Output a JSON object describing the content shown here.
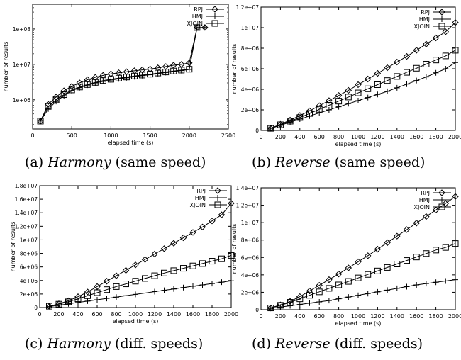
{
  "captions": [
    {
      "tag": "(a)",
      "name": "Harmony",
      "detail": "(same speed)"
    },
    {
      "tag": "(b)",
      "name": "Reverse",
      "detail": "(same speed)"
    },
    {
      "tag": "(c)",
      "name": "Harmony",
      "detail": "(diff. speeds)"
    },
    {
      "tag": "(d)",
      "name": "Reverse",
      "detail": "(diff. speeds)"
    }
  ],
  "chart_data": [
    {
      "type": "line",
      "xlabel": "elapsed time (s)",
      "ylabel": "number of results",
      "xlim": [
        0,
        2500
      ],
      "ylim": [
        150000,
        500000000
      ],
      "yscale": "log",
      "xticks": [
        0,
        500,
        1000,
        1500,
        2000,
        2500
      ],
      "xtick_labels": [
        "0",
        "500",
        "1000",
        "1500",
        "2000",
        "2500"
      ],
      "yticks": [
        1000000,
        10000000,
        100000000
      ],
      "ytick_labels": [
        "1e+06",
        "1e+07",
        "1e+08"
      ],
      "legend": "top-right",
      "grid": false,
      "series": [
        {
          "name": "RPJ",
          "marker": "diamond",
          "x": [
            100,
            200,
            300,
            400,
            500,
            600,
            700,
            800,
            900,
            1000,
            1100,
            1200,
            1300,
            1400,
            1500,
            1600,
            1700,
            1800,
            1900,
            2000,
            2100,
            2200
          ],
          "y": [
            250000,
            750000,
            1200000,
            1800000,
            2400000,
            3000000,
            3700000,
            4300000,
            4900000,
            5400000,
            5800000,
            6200000,
            6600000,
            7000000,
            7400000,
            8000000,
            8700000,
            9500000,
            10000000,
            11000000,
            110000000,
            110000000
          ]
        },
        {
          "name": "HMJ",
          "marker": "plus",
          "x": [
            100,
            200,
            300,
            400,
            500,
            600,
            700,
            800,
            900,
            1000,
            1100,
            1200,
            1300,
            1400,
            1500,
            1600,
            1700,
            1800,
            1900,
            2000,
            2100,
            2200
          ],
          "y": [
            250000,
            550000,
            900000,
            1300000,
            1800000,
            2200000,
            2600000,
            3000000,
            3300000,
            3600000,
            3900000,
            4200000,
            4500000,
            4800000,
            5100000,
            5500000,
            5900000,
            6300000,
            6700000,
            7200000,
            110000000,
            110000000
          ]
        },
        {
          "name": "XJOIN",
          "marker": "square",
          "x": [
            100,
            200,
            300,
            400,
            500,
            600,
            700,
            800,
            900,
            1000,
            1100,
            1200,
            1300,
            1400,
            1500,
            1600,
            1700,
            1800,
            1900,
            2000,
            2100
          ],
          "y": [
            250000,
            650000,
            1000000,
            1400000,
            1900000,
            2300000,
            2700000,
            3100000,
            3500000,
            3800000,
            4100000,
            4400000,
            4700000,
            5000000,
            5300000,
            5700000,
            6100000,
            6500000,
            6900000,
            7300000,
            110000000
          ]
        }
      ]
    },
    {
      "type": "line",
      "xlabel": "elapsed time (s)",
      "ylabel": "number of results",
      "xlim": [
        0,
        2000
      ],
      "ylim": [
        0,
        12000000
      ],
      "yscale": "linear",
      "xticks": [
        0,
        200,
        400,
        600,
        800,
        1000,
        1200,
        1400,
        1600,
        1800,
        2000
      ],
      "xtick_labels": [
        "0",
        "200",
        "400",
        "600",
        "800",
        "1000",
        "1200",
        "1400",
        "1600",
        "1800",
        "2000"
      ],
      "yticks": [
        0,
        2000000,
        4000000,
        6000000,
        8000000,
        10000000,
        12000000
      ],
      "ytick_labels": [
        "0",
        "2e+06",
        "4e+06",
        "6e+06",
        "8e+06",
        "1e+07",
        "1.2e+07"
      ],
      "legend": "top-right",
      "grid": false,
      "series": [
        {
          "name": "RPJ",
          "marker": "diamond",
          "x": [
            100,
            200,
            300,
            400,
            500,
            600,
            700,
            800,
            900,
            1000,
            1100,
            1200,
            1300,
            1400,
            1500,
            1600,
            1700,
            1800,
            1900,
            2000
          ],
          "y": [
            200000,
            600000,
            1000000,
            1450000,
            1900000,
            2400000,
            2900000,
            3400000,
            3900000,
            4450000,
            5000000,
            5550000,
            6100000,
            6650000,
            7200000,
            7800000,
            8400000,
            9000000,
            9600000,
            10500000
          ]
        },
        {
          "name": "HMJ",
          "marker": "plus",
          "x": [
            100,
            200,
            300,
            400,
            500,
            600,
            700,
            800,
            900,
            1000,
            1100,
            1200,
            1300,
            1400,
            1500,
            1600,
            1700,
            1800,
            1900,
            2000
          ],
          "y": [
            200000,
            500000,
            800000,
            1100000,
            1400000,
            1700000,
            2000000,
            2300000,
            2600000,
            2900000,
            3200000,
            3500000,
            3800000,
            4150000,
            4500000,
            4850000,
            5200000,
            5600000,
            6000000,
            6600000
          ]
        },
        {
          "name": "XJOIN",
          "marker": "square",
          "x": [
            100,
            200,
            300,
            400,
            500,
            600,
            700,
            800,
            900,
            1000,
            1100,
            1200,
            1300,
            1400,
            1500,
            1600,
            1700,
            1800,
            1900,
            2000
          ],
          "y": [
            200000,
            550000,
            900000,
            1250000,
            1650000,
            2050000,
            2450000,
            2850000,
            3250000,
            3650000,
            4050000,
            4450000,
            4850000,
            5250000,
            5650000,
            6050000,
            6450000,
            6850000,
            7250000,
            7800000
          ]
        }
      ]
    },
    {
      "type": "line",
      "xlabel": "elapsed time (s)",
      "ylabel": "number of results",
      "xlim": [
        0,
        2000
      ],
      "ylim": [
        0,
        18000000
      ],
      "yscale": "linear",
      "xticks": [
        0,
        200,
        400,
        600,
        800,
        1000,
        1200,
        1400,
        1600,
        1800,
        2000
      ],
      "xtick_labels": [
        "0",
        "200",
        "400",
        "600",
        "800",
        "1000",
        "1200",
        "1400",
        "1600",
        "1800",
        "2000"
      ],
      "yticks": [
        0,
        2000000,
        4000000,
        6000000,
        8000000,
        10000000,
        12000000,
        14000000,
        16000000,
        18000000
      ],
      "ytick_labels": [
        "0",
        "2e+06",
        "4e+06",
        "6e+06",
        "8e+06",
        "1e+07",
        "1.2e+07",
        "1.4e+07",
        "1.6e+07",
        "1.8e+07"
      ],
      "legend": "top-right",
      "grid": false,
      "series": [
        {
          "name": "RPJ",
          "marker": "diamond",
          "x": [
            100,
            200,
            300,
            400,
            500,
            600,
            700,
            800,
            900,
            1000,
            1100,
            1200,
            1300,
            1400,
            1500,
            1600,
            1700,
            1800,
            1900,
            2000
          ],
          "y": [
            200000,
            550000,
            1000000,
            1600000,
            2300000,
            3100000,
            3900000,
            4700000,
            5500000,
            6300000,
            7100000,
            7900000,
            8700000,
            9500000,
            10300000,
            11100000,
            11900000,
            12800000,
            13700000,
            15400000
          ]
        },
        {
          "name": "HMJ",
          "marker": "plus",
          "x": [
            100,
            200,
            300,
            400,
            500,
            600,
            700,
            800,
            900,
            1000,
            1100,
            1200,
            1300,
            1400,
            1500,
            1600,
            1700,
            1800,
            1900,
            2000
          ],
          "y": [
            150000,
            350000,
            550000,
            750000,
            950000,
            1150000,
            1350000,
            1550000,
            1750000,
            1950000,
            2150000,
            2350000,
            2550000,
            2750000,
            2950000,
            3150000,
            3350000,
            3550000,
            3750000,
            3950000
          ]
        },
        {
          "name": "XJOIN",
          "marker": "square",
          "x": [
            100,
            200,
            300,
            400,
            500,
            600,
            700,
            800,
            900,
            1000,
            1100,
            1200,
            1300,
            1400,
            1500,
            1600,
            1700,
            1800,
            1900,
            2000
          ],
          "y": [
            200000,
            500000,
            850000,
            1300000,
            1750000,
            2200000,
            2650000,
            3100000,
            3500000,
            3900000,
            4300000,
            4700000,
            5100000,
            5450000,
            5800000,
            6150000,
            6500000,
            6850000,
            7200000,
            7700000
          ]
        }
      ]
    },
    {
      "type": "line",
      "xlabel": "elapsed time (s)",
      "ylabel": "number of results",
      "xlim": [
        0,
        2000
      ],
      "ylim": [
        0,
        14000000
      ],
      "yscale": "linear",
      "xticks": [
        0,
        200,
        400,
        600,
        800,
        1000,
        1200,
        1400,
        1600,
        1800,
        2000
      ],
      "xtick_labels": [
        "0",
        "200",
        "400",
        "600",
        "800",
        "1000",
        "1200",
        "1400",
        "1600",
        "1800",
        "2000"
      ],
      "yticks": [
        0,
        2000000,
        4000000,
        6000000,
        8000000,
        10000000,
        12000000,
        14000000
      ],
      "ytick_labels": [
        "0",
        "2e+06",
        "4e+06",
        "6e+06",
        "8e+06",
        "1e+07",
        "1.2e+07",
        "1.4e+07"
      ],
      "legend": "top-right",
      "grid": false,
      "series": [
        {
          "name": "RPJ",
          "marker": "diamond",
          "x": [
            100,
            200,
            300,
            400,
            500,
            600,
            700,
            800,
            900,
            1000,
            1100,
            1200,
            1300,
            1400,
            1500,
            1600,
            1700,
            1800,
            1900,
            2000
          ],
          "y": [
            200000,
            550000,
            950000,
            1500000,
            2150000,
            2800000,
            3450000,
            4100000,
            4800000,
            5500000,
            6200000,
            6950000,
            7700000,
            8450000,
            9200000,
            9950000,
            10700000,
            11450000,
            12200000,
            13000000
          ]
        },
        {
          "name": "HMJ",
          "marker": "plus",
          "x": [
            100,
            200,
            300,
            400,
            500,
            600,
            700,
            800,
            900,
            1000,
            1100,
            1200,
            1300,
            1400,
            1500,
            1600,
            1700,
            1800,
            1900,
            2000
          ],
          "y": [
            150000,
            300000,
            450000,
            600000,
            750000,
            900000,
            1050000,
            1250000,
            1450000,
            1650000,
            1850000,
            2050000,
            2250000,
            2450000,
            2650000,
            2850000,
            3000000,
            3150000,
            3300000,
            3450000
          ]
        },
        {
          "name": "XJOIN",
          "marker": "square",
          "x": [
            100,
            200,
            300,
            400,
            500,
            600,
            700,
            800,
            900,
            1000,
            1100,
            1200,
            1300,
            1400,
            1500,
            1600,
            1700,
            1800,
            1900,
            2000
          ],
          "y": [
            200000,
            500000,
            850000,
            1250000,
            1650000,
            2050000,
            2450000,
            2850000,
            3250000,
            3650000,
            4050000,
            4450000,
            4850000,
            5250000,
            5650000,
            6050000,
            6450000,
            6850000,
            7150000,
            7600000
          ]
        }
      ]
    }
  ]
}
